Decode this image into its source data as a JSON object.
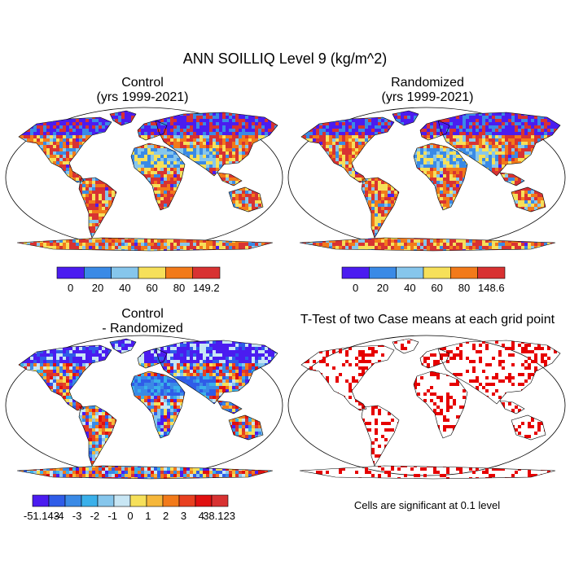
{
  "figure": {
    "title": "ANN SOILLIQ Level 9 (kg/m^2)"
  },
  "panels": {
    "control": {
      "title_line1": "Control",
      "title_line2": "(yrs 1999-2021)",
      "colorbar": {
        "labels": [
          "0",
          "20",
          "40",
          "60",
          "80",
          "149.2"
        ],
        "colors": [
          "#4b1cf0",
          "#3a8ae6",
          "#86c6ec",
          "#f6e05a",
          "#f27a1a",
          "#d83232"
        ]
      }
    },
    "randomized": {
      "title_line1": "Randomized",
      "title_line2": "(yrs 1999-2021)",
      "colorbar": {
        "labels": [
          "0",
          "20",
          "40",
          "60",
          "80",
          "148.6"
        ],
        "colors": [
          "#4b1cf0",
          "#3a8ae6",
          "#86c6ec",
          "#f6e05a",
          "#f27a1a",
          "#d83232"
        ]
      }
    },
    "difference": {
      "title_line1": "Control",
      "title_line2": "- Randomized",
      "colorbar": {
        "labels": [
          "-51.143",
          "-4",
          "-3",
          "-2",
          "-1",
          "0",
          "1",
          "2",
          "3",
          "4",
          "38.123"
        ],
        "colors": [
          "#4b1cf0",
          "#2f5ce8",
          "#3a8ae6",
          "#3ab0ea",
          "#86c6ec",
          "#c8e6f4",
          "#f6e05a",
          "#f6b73a",
          "#f27a1a",
          "#e84020",
          "#e01010",
          "#d83232"
        ]
      }
    },
    "ttest": {
      "title": "T-Test of two Case means at each grid point",
      "note": "Cells are significant at 0.1 level",
      "highlight_color": "#e60000"
    }
  }
}
